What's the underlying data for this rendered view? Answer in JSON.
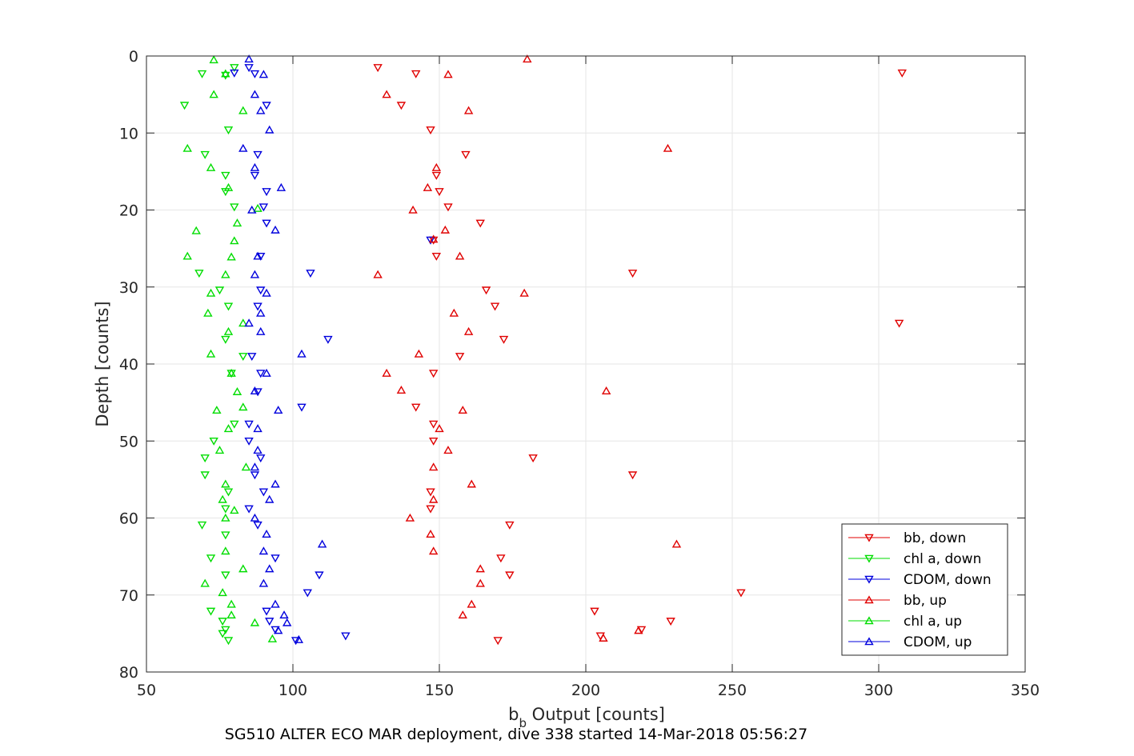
{
  "chart_data": {
    "type": "scatter",
    "title": "",
    "xlabel_main": "b",
    "xlabel_sub": "b",
    "xlabel_rest": " Output [counts]",
    "ylabel": "Depth [counts]",
    "caption": "SG510 ALTER ECO MAR deployment, dive 338 started 14-Mar-2018 05:56:27",
    "xlim": [
      50,
      350
    ],
    "ylim": [
      0,
      80
    ],
    "y_reversed": true,
    "grid": true,
    "legend_location": "bottom-right",
    "xticks": [
      50,
      100,
      150,
      200,
      250,
      300,
      350
    ],
    "yticks": [
      0,
      10,
      20,
      30,
      40,
      50,
      60,
      70,
      80
    ],
    "series": [
      {
        "name": "bb, down",
        "color": "#e00000",
        "marker": "triangle-down",
        "points": [
          [
            129,
            1.5
          ],
          [
            142,
            2.3
          ],
          [
            308,
            2.2
          ],
          [
            137,
            6.4
          ],
          [
            147,
            9.6
          ],
          [
            159,
            12.8
          ],
          [
            149,
            15.5
          ],
          [
            150,
            17.6
          ],
          [
            153,
            19.6
          ],
          [
            164,
            21.7
          ],
          [
            148,
            23.9
          ],
          [
            149,
            26
          ],
          [
            216,
            28.2
          ],
          [
            166,
            30.4
          ],
          [
            169,
            32.5
          ],
          [
            307,
            34.7
          ],
          [
            172,
            36.8
          ],
          [
            157,
            39
          ],
          [
            148,
            41.2
          ],
          [
            142,
            45.6
          ],
          [
            148,
            47.8
          ],
          [
            148,
            50
          ],
          [
            182,
            52.2
          ],
          [
            216,
            54.4
          ],
          [
            147,
            56.6
          ],
          [
            147,
            58.8
          ],
          [
            174,
            60.9
          ],
          [
            171,
            65.2
          ],
          [
            174,
            67.4
          ],
          [
            253,
            69.7
          ],
          [
            203,
            72.1
          ],
          [
            229,
            73.4
          ],
          [
            219,
            74.5
          ],
          [
            205,
            75.3
          ],
          [
            170,
            75.9
          ]
        ]
      },
      {
        "name": "chl a, down",
        "color": "#00dd00",
        "marker": "triangle-down",
        "points": [
          [
            80,
            1.5
          ],
          [
            69,
            2.3
          ],
          [
            77,
            2.5
          ],
          [
            63,
            6.4
          ],
          [
            78,
            9.6
          ],
          [
            70,
            12.8
          ],
          [
            77,
            15.5
          ],
          [
            77,
            17.6
          ],
          [
            80,
            19.6
          ],
          [
            68,
            28.2
          ],
          [
            75,
            30.4
          ],
          [
            78,
            32.5
          ],
          [
            77,
            36.8
          ],
          [
            83,
            39
          ],
          [
            79,
            41.2
          ],
          [
            80,
            47.8
          ],
          [
            73,
            50
          ],
          [
            70,
            52.2
          ],
          [
            70,
            54.4
          ],
          [
            78,
            56.6
          ],
          [
            77,
            58.8
          ],
          [
            69,
            60.9
          ],
          [
            77,
            62.2
          ],
          [
            72,
            65.2
          ],
          [
            77,
            67.4
          ],
          [
            72,
            72.1
          ],
          [
            76,
            73.4
          ],
          [
            77,
            74.5
          ],
          [
            76,
            75
          ],
          [
            78,
            75.9
          ]
        ]
      },
      {
        "name": "CDOM, down",
        "color": "#0000dd",
        "marker": "triangle-down",
        "points": [
          [
            80,
            2.2
          ],
          [
            85,
            1.5
          ],
          [
            87,
            2.3
          ],
          [
            91,
            6.4
          ],
          [
            88,
            12.8
          ],
          [
            87,
            15.5
          ],
          [
            91,
            17.6
          ],
          [
            90,
            19.6
          ],
          [
            91,
            21.7
          ],
          [
            147,
            23.9
          ],
          [
            89,
            26
          ],
          [
            106,
            28.2
          ],
          [
            89,
            30.4
          ],
          [
            88,
            32.5
          ],
          [
            112,
            36.8
          ],
          [
            86,
            39
          ],
          [
            89,
            41.2
          ],
          [
            88,
            43.6
          ],
          [
            103,
            45.6
          ],
          [
            85,
            47.8
          ],
          [
            85,
            50
          ],
          [
            89,
            52.2
          ],
          [
            87,
            54.4
          ],
          [
            90,
            56.6
          ],
          [
            85,
            58.8
          ],
          [
            88,
            60.9
          ],
          [
            94,
            65.2
          ],
          [
            109,
            67.4
          ],
          [
            105,
            69.7
          ],
          [
            91,
            72.1
          ],
          [
            92,
            73.4
          ],
          [
            94,
            74.5
          ],
          [
            118,
            75.3
          ],
          [
            101,
            75.9
          ]
        ]
      },
      {
        "name": "bb, up",
        "color": "#e00000",
        "marker": "triangle-up",
        "points": [
          [
            180,
            0.4
          ],
          [
            153,
            2.4
          ],
          [
            132,
            5
          ],
          [
            160,
            7.1
          ],
          [
            228,
            12
          ],
          [
            149,
            14.5
          ],
          [
            146,
            17.1
          ],
          [
            141,
            20
          ],
          [
            152,
            22.6
          ],
          [
            148,
            23.8
          ],
          [
            157,
            26
          ],
          [
            129,
            28.4
          ],
          [
            179,
            30.8
          ],
          [
            155,
            33.4
          ],
          [
            160,
            35.8
          ],
          [
            143,
            38.7
          ],
          [
            132,
            41.2
          ],
          [
            137,
            43.4
          ],
          [
            207,
            43.5
          ],
          [
            158,
            46
          ],
          [
            150,
            48.4
          ],
          [
            153,
            51.2
          ],
          [
            148,
            53.4
          ],
          [
            161,
            55.6
          ],
          [
            148,
            57.6
          ],
          [
            140,
            60
          ],
          [
            147,
            62.1
          ],
          [
            231,
            63.4
          ],
          [
            148,
            64.3
          ],
          [
            164,
            66.6
          ],
          [
            164,
            68.5
          ],
          [
            161,
            71.2
          ],
          [
            158,
            72.6
          ],
          [
            218,
            74.6
          ],
          [
            206,
            75.6
          ]
        ]
      },
      {
        "name": "chl a, up",
        "color": "#00dd00",
        "marker": "triangle-up",
        "points": [
          [
            73,
            0.5
          ],
          [
            77,
            2.3
          ],
          [
            73,
            5
          ],
          [
            83,
            7.1
          ],
          [
            64,
            12
          ],
          [
            72,
            14.5
          ],
          [
            78,
            17.1
          ],
          [
            88,
            19.8
          ],
          [
            81,
            21.7
          ],
          [
            80,
            24
          ],
          [
            67,
            22.7
          ],
          [
            64,
            26
          ],
          [
            79,
            26.1
          ],
          [
            77,
            28.4
          ],
          [
            72,
            30.8
          ],
          [
            71,
            33.4
          ],
          [
            83,
            34.7
          ],
          [
            78,
            35.8
          ],
          [
            72,
            38.7
          ],
          [
            79,
            41.2
          ],
          [
            81,
            43.6
          ],
          [
            74,
            46
          ],
          [
            83,
            45.6
          ],
          [
            78,
            48.4
          ],
          [
            75,
            51.2
          ],
          [
            84,
            53.4
          ],
          [
            77,
            55.6
          ],
          [
            76,
            57.6
          ],
          [
            80,
            59
          ],
          [
            77,
            60
          ],
          [
            77,
            64.3
          ],
          [
            83,
            66.6
          ],
          [
            70,
            68.5
          ],
          [
            76,
            69.7
          ],
          [
            79,
            71.2
          ],
          [
            79,
            72.6
          ],
          [
            87,
            73.6
          ],
          [
            93,
            75.7
          ]
        ]
      },
      {
        "name": "CDOM, up",
        "color": "#0000dd",
        "marker": "triangle-up",
        "points": [
          [
            85,
            0.4
          ],
          [
            90,
            2.4
          ],
          [
            87,
            5
          ],
          [
            89,
            7.1
          ],
          [
            92,
            9.6
          ],
          [
            83,
            12
          ],
          [
            87,
            14.5
          ],
          [
            96,
            17.1
          ],
          [
            86,
            20
          ],
          [
            94,
            22.6
          ],
          [
            88,
            26
          ],
          [
            87,
            28.4
          ],
          [
            91,
            30.8
          ],
          [
            89,
            33.4
          ],
          [
            85,
            34.7
          ],
          [
            89,
            35.8
          ],
          [
            103,
            38.7
          ],
          [
            91,
            41.2
          ],
          [
            87,
            43.5
          ],
          [
            95,
            46
          ],
          [
            88,
            48.4
          ],
          [
            88,
            51.2
          ],
          [
            87,
            53.4
          ],
          [
            94,
            55.6
          ],
          [
            92,
            57.6
          ],
          [
            87,
            60
          ],
          [
            91,
            62.1
          ],
          [
            110,
            63.4
          ],
          [
            90,
            64.3
          ],
          [
            92,
            66.6
          ],
          [
            90,
            68.5
          ],
          [
            94,
            71.2
          ],
          [
            97,
            72.6
          ],
          [
            98,
            73.6
          ],
          [
            95,
            74.6
          ],
          [
            102,
            75.8
          ]
        ]
      }
    ]
  }
}
